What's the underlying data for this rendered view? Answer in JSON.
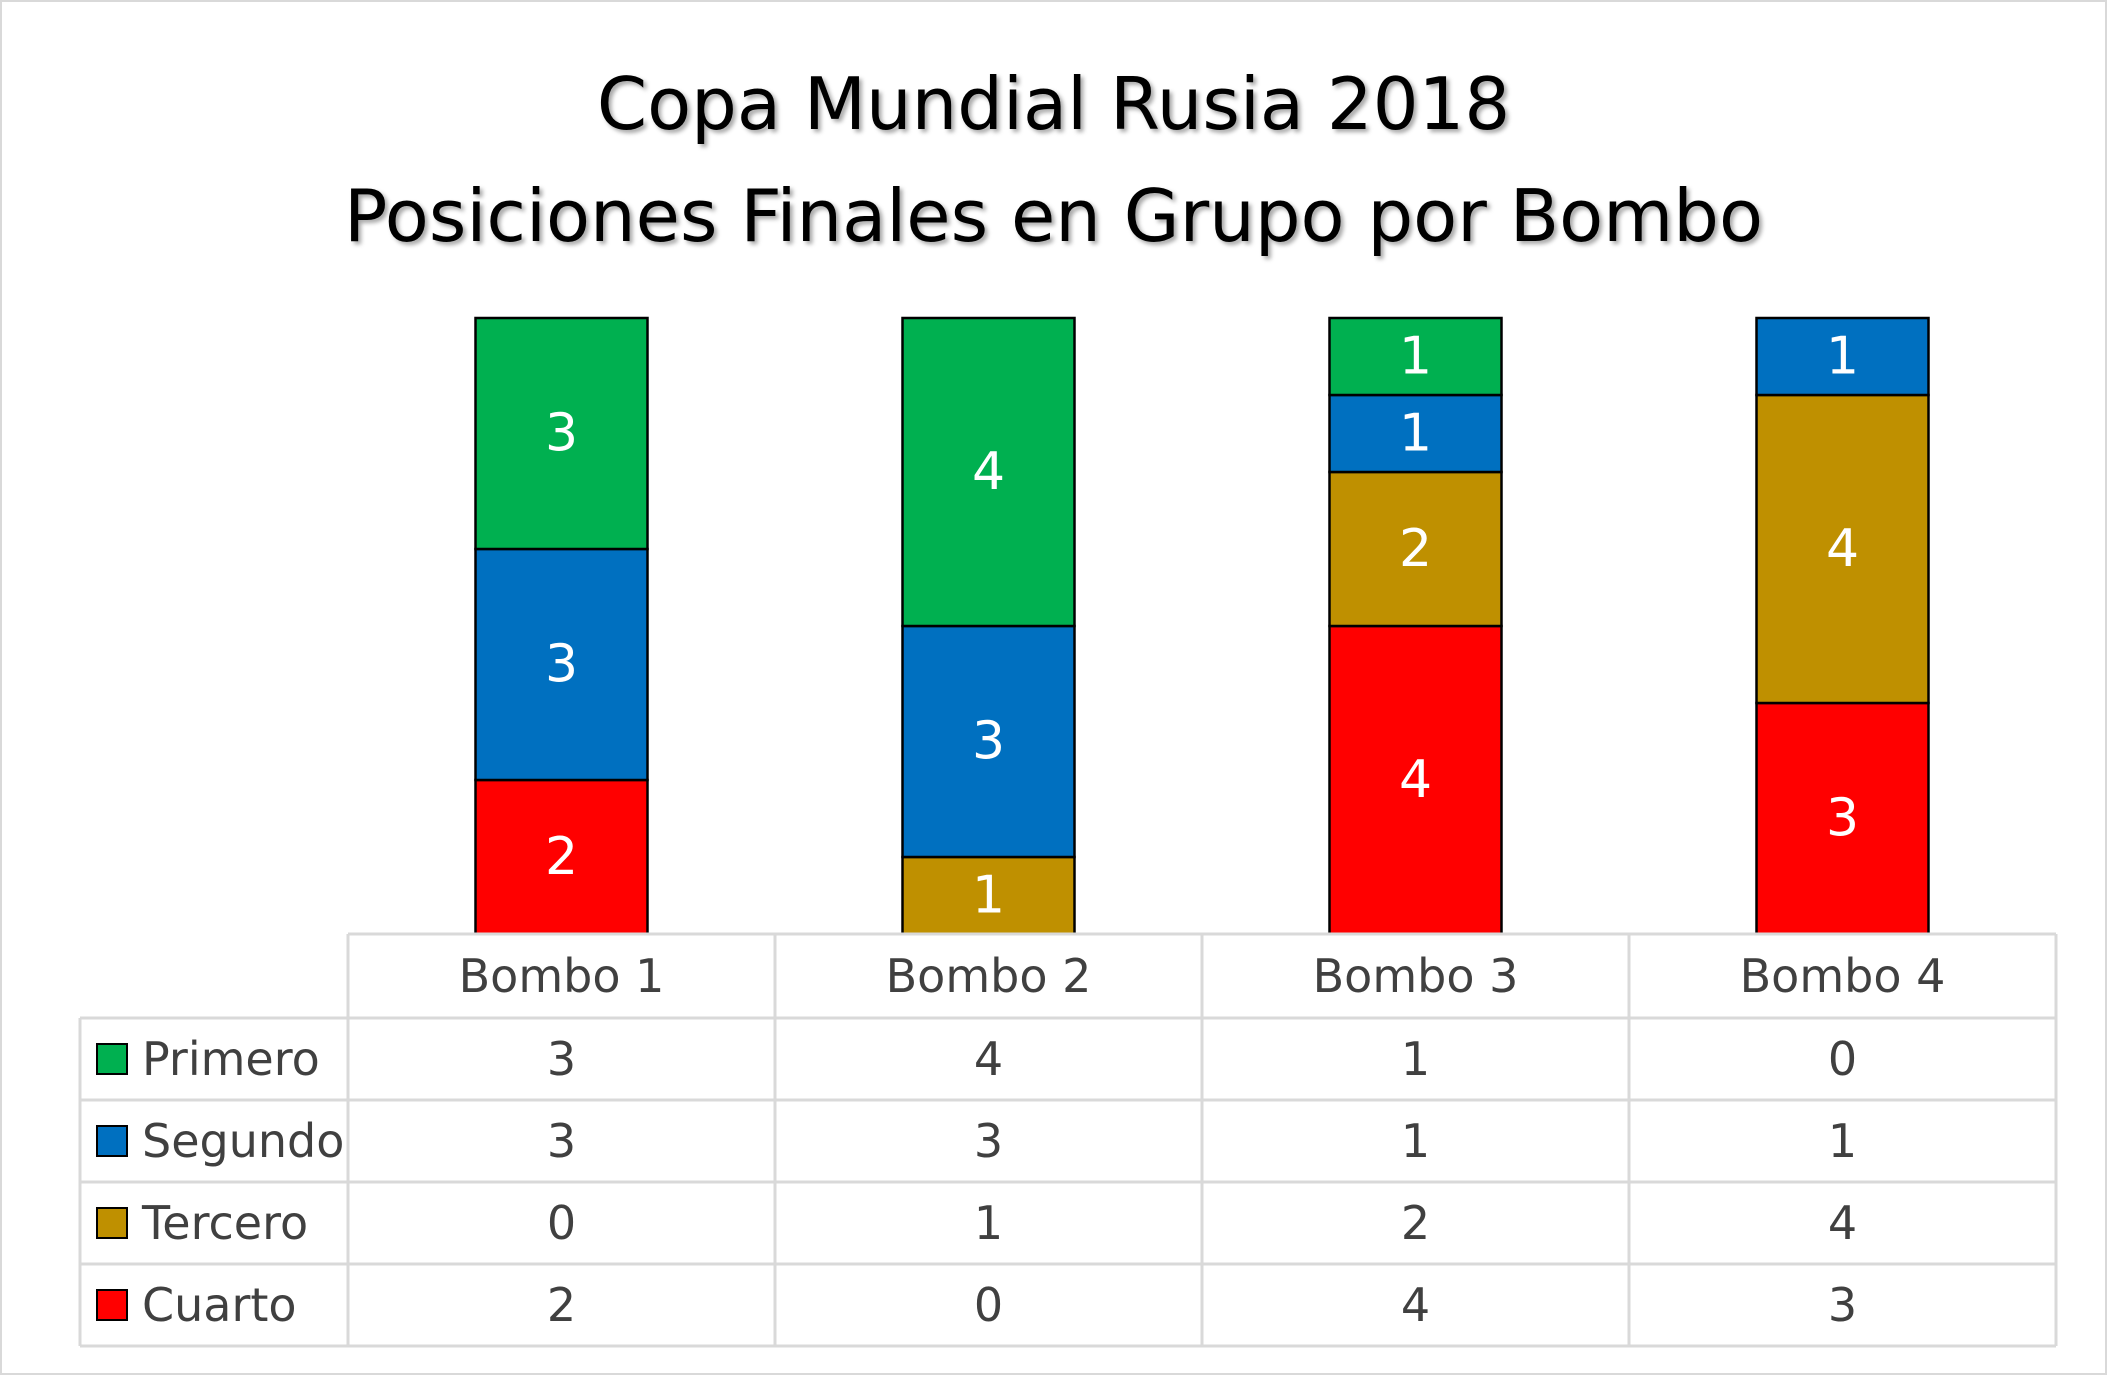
{
  "chart_data": {
    "type": "bar",
    "stacked": true,
    "title": [
      "Copa Mundial Rusia 2018",
      "Posiciones Finales en Grupo por Bombo"
    ],
    "categories": [
      "Bombo 1",
      "Bombo 2",
      "Bombo 3",
      "Bombo 4"
    ],
    "series": [
      {
        "name": "Primero",
        "color": "#00b050",
        "values": [
          3,
          4,
          1,
          0
        ]
      },
      {
        "name": "Segundo",
        "color": "#0070c0",
        "values": [
          3,
          3,
          1,
          1
        ]
      },
      {
        "name": "Tercero",
        "color": "#bf9000",
        "values": [
          0,
          1,
          2,
          4
        ]
      },
      {
        "name": "Cuarto",
        "color": "#ff0000",
        "values": [
          2,
          0,
          4,
          3
        ]
      }
    ],
    "ylim": [
      0,
      8
    ],
    "data_table": true,
    "grid": false
  }
}
